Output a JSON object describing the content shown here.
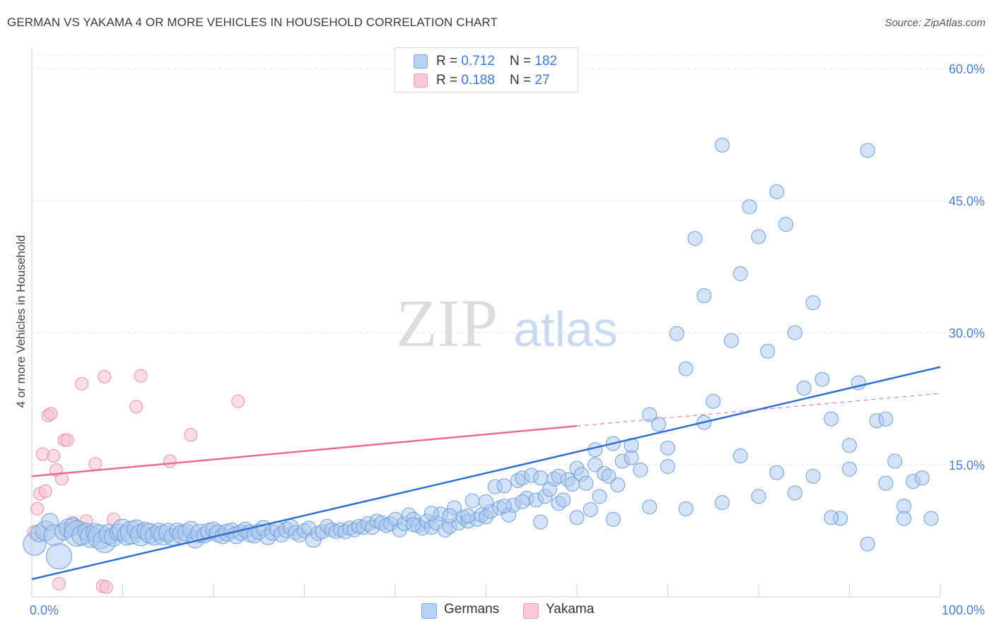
{
  "title": "GERMAN VS YAKAMA 4 OR MORE VEHICLES IN HOUSEHOLD CORRELATION CHART",
  "source": "Source: ZipAtlas.com",
  "watermark": {
    "zip": "ZIP",
    "atlas": "atlas"
  },
  "colors": {
    "german_fill": "#a9c8f0",
    "german_stroke": "#6e9fdc",
    "german_line": "#2f6fd0",
    "yakama_fill": "#f7bdd0",
    "yakama_stroke": "#e890ae",
    "yakama_line": "#e8689a",
    "tick_text": "#4a7fcb",
    "grid": "#e2e2e2"
  },
  "legend": {
    "rows": [
      {
        "r_label": "R = ",
        "r_value": "0.712",
        "n_label": "N = ",
        "n_value": "182"
      },
      {
        "r_label": "R = ",
        "r_value": "0.188",
        "n_label": "N = ",
        "n_value": "27"
      }
    ]
  },
  "bottom_legend": {
    "germans": "Germans",
    "yakama": "Yakama"
  },
  "chart_data": {
    "type": "scatter",
    "title": "GERMAN VS YAKAMA 4 OR MORE VEHICLES IN HOUSEHOLD CORRELATION CHART",
    "xlabel": "",
    "ylabel": "4 or more Vehicles in Household",
    "xlim": [
      0,
      100
    ],
    "ylim": [
      0,
      63
    ],
    "x_tick_labels": [
      "0.0%",
      "100.0%"
    ],
    "y_ticks": [
      15,
      30,
      45,
      60
    ],
    "y_tick_labels": [
      "15.0%",
      "30.0%",
      "45.0%",
      "60.0%"
    ],
    "grid": true,
    "legend_placement": "top-center",
    "series": [
      {
        "name": "Germans",
        "R": 0.712,
        "N": 182,
        "trend": {
          "x0": 0,
          "y0": 2.0,
          "x1": 100,
          "y1": 26.1
        },
        "points": [
          [
            0.3,
            6.0,
            16
          ],
          [
            0.8,
            7.2,
            12
          ],
          [
            1.5,
            7.5,
            14
          ],
          [
            2.0,
            8.5,
            12
          ],
          [
            2.5,
            7.0,
            15
          ],
          [
            3.0,
            4.6,
            18
          ],
          [
            3.5,
            7.4,
            12
          ],
          [
            4.0,
            7.8,
            13
          ],
          [
            4.5,
            8.0,
            12
          ],
          [
            5.0,
            7.2,
            18
          ],
          [
            5.5,
            7.0,
            14
          ],
          [
            6.0,
            7.4,
            12
          ],
          [
            6.5,
            6.8,
            15
          ],
          [
            7.0,
            7.3,
            13
          ],
          [
            7.5,
            6.8,
            17
          ],
          [
            8.0,
            6.3,
            16
          ],
          [
            8.5,
            7.1,
            14
          ],
          [
            9.0,
            6.8,
            13
          ],
          [
            9.5,
            7.3,
            12
          ],
          [
            10.0,
            7.6,
            15
          ],
          [
            10.5,
            7.0,
            14
          ],
          [
            11.0,
            7.3,
            16
          ],
          [
            11.5,
            7.7,
            13
          ],
          [
            12.0,
            7.0,
            15
          ],
          [
            12.5,
            7.5,
            12
          ],
          [
            13.0,
            7.2,
            14
          ],
          [
            13.5,
            6.9,
            13
          ],
          [
            14.0,
            7.4,
            12
          ],
          [
            14.5,
            7.0,
            14
          ],
          [
            15.0,
            7.3,
            13
          ],
          [
            15.5,
            6.8,
            12
          ],
          [
            16.0,
            7.5,
            11
          ],
          [
            16.5,
            7.1,
            13
          ],
          [
            17.0,
            7.3,
            12
          ],
          [
            17.5,
            7.6,
            12
          ],
          [
            18.0,
            6.5,
            12
          ],
          [
            18.5,
            7.2,
            13
          ],
          [
            19.0,
            7.0,
            11
          ],
          [
            19.5,
            7.4,
            12
          ],
          [
            20.0,
            7.6,
            11
          ],
          [
            20.5,
            7.2,
            12
          ],
          [
            21.0,
            6.9,
            11
          ],
          [
            21.5,
            7.3,
            12
          ],
          [
            22.0,
            7.5,
            11
          ],
          [
            22.5,
            7.0,
            12
          ],
          [
            23.0,
            7.3,
            11
          ],
          [
            23.5,
            7.6,
            11
          ],
          [
            24.0,
            7.2,
            12
          ],
          [
            24.5,
            7.0,
            11
          ],
          [
            25.0,
            7.4,
            11
          ],
          [
            25.5,
            7.8,
            11
          ],
          [
            26.0,
            6.8,
            11
          ],
          [
            26.5,
            7.3,
            11
          ],
          [
            27.0,
            7.7,
            11
          ],
          [
            27.5,
            7.1,
            11
          ],
          [
            28.0,
            7.6,
            11
          ],
          [
            28.5,
            7.9,
            11
          ],
          [
            29.0,
            7.3,
            10
          ],
          [
            29.5,
            7.0,
            10
          ],
          [
            30.0,
            7.5,
            10
          ],
          [
            30.5,
            7.8,
            10
          ],
          [
            31.0,
            6.5,
            11
          ],
          [
            31.5,
            7.2,
            10
          ],
          [
            32.0,
            7.4,
            10
          ],
          [
            32.5,
            8.0,
            10
          ],
          [
            33.0,
            7.6,
            10
          ],
          [
            33.5,
            7.4,
            10
          ],
          [
            34.0,
            7.6,
            10
          ],
          [
            34.5,
            7.4,
            10
          ],
          [
            35.0,
            7.8,
            10
          ],
          [
            35.5,
            7.6,
            10
          ],
          [
            36.0,
            8.0,
            10
          ],
          [
            36.5,
            7.9,
            10
          ],
          [
            37.0,
            8.3,
            10
          ],
          [
            37.5,
            7.9,
            10
          ],
          [
            38.0,
            8.6,
            10
          ],
          [
            38.5,
            8.4,
            10
          ],
          [
            39.0,
            8.1,
            10
          ],
          [
            39.5,
            8.3,
            10
          ],
          [
            40.0,
            8.8,
            10
          ],
          [
            40.5,
            7.6,
            10
          ],
          [
            41.0,
            8.3,
            10
          ],
          [
            41.5,
            9.3,
            10
          ],
          [
            42.0,
            8.8,
            10
          ],
          [
            42.5,
            8.1,
            10
          ],
          [
            43.0,
            7.8,
            10
          ],
          [
            43.5,
            8.6,
            10
          ],
          [
            44.0,
            7.9,
            10
          ],
          [
            44.5,
            8.4,
            10
          ],
          [
            45.0,
            9.4,
            10
          ],
          [
            45.5,
            7.6,
            10
          ],
          [
            46.0,
            8.0,
            10
          ],
          [
            46.5,
            10.1,
            10
          ],
          [
            47.0,
            8.4,
            10
          ],
          [
            47.5,
            9.0,
            10
          ],
          [
            48.0,
            8.6,
            10
          ],
          [
            48.5,
            10.9,
            10
          ],
          [
            49.0,
            8.8,
            10
          ],
          [
            49.5,
            9.3,
            10
          ],
          [
            50.0,
            9.1,
            10
          ],
          [
            50.5,
            9.7,
            10
          ],
          [
            51.0,
            12.5,
            10
          ],
          [
            51.5,
            10.1,
            10
          ],
          [
            52.0,
            12.6,
            10
          ],
          [
            52.5,
            9.3,
            10
          ],
          [
            53.0,
            10.4,
            10
          ],
          [
            53.5,
            13.2,
            10
          ],
          [
            54.0,
            13.5,
            10
          ],
          [
            54.5,
            11.2,
            10
          ],
          [
            55.0,
            13.8,
            10
          ],
          [
            55.5,
            11.0,
            10
          ],
          [
            56.0,
            13.5,
            10
          ],
          [
            56.5,
            11.4,
            10
          ],
          [
            57.0,
            12.2,
            10
          ],
          [
            57.5,
            13.4,
            10
          ],
          [
            58.0,
            10.6,
            10
          ],
          [
            58.5,
            11.0,
            10
          ],
          [
            59.0,
            13.3,
            10
          ],
          [
            59.5,
            12.8,
            10
          ],
          [
            60.0,
            14.6,
            10
          ],
          [
            60.5,
            13.9,
            10
          ],
          [
            61.0,
            12.9,
            10
          ],
          [
            61.5,
            9.9,
            10
          ],
          [
            62.0,
            15.0,
            10
          ],
          [
            62.5,
            11.4,
            10
          ],
          [
            63.0,
            14.0,
            10
          ],
          [
            63.5,
            13.7,
            10
          ],
          [
            64.0,
            17.4,
            10
          ],
          [
            64.5,
            12.7,
            10
          ],
          [
            65.0,
            15.4,
            10
          ],
          [
            66.0,
            15.8,
            10
          ],
          [
            67.0,
            14.4,
            10
          ],
          [
            68.0,
            20.7,
            10
          ],
          [
            69.0,
            19.6,
            10
          ],
          [
            70.0,
            14.8,
            10
          ],
          [
            71.0,
            29.9,
            10
          ],
          [
            72.0,
            25.9,
            10
          ],
          [
            73.0,
            40.7,
            10
          ],
          [
            74.0,
            34.2,
            10
          ],
          [
            75.0,
            22.2,
            10
          ],
          [
            76.0,
            51.3,
            10
          ],
          [
            77.0,
            29.1,
            10
          ],
          [
            78.0,
            36.7,
            10
          ],
          [
            79.0,
            44.3,
            10
          ],
          [
            80.0,
            40.9,
            10
          ],
          [
            81.0,
            27.9,
            10
          ],
          [
            82.0,
            46.0,
            10
          ],
          [
            83.0,
            42.3,
            10
          ],
          [
            84.0,
            30.0,
            10
          ],
          [
            85.0,
            23.7,
            10
          ],
          [
            86.0,
            33.4,
            10
          ],
          [
            87.0,
            24.7,
            10
          ],
          [
            88.0,
            20.2,
            10
          ],
          [
            89.0,
            8.9,
            10
          ],
          [
            90.0,
            17.2,
            10
          ],
          [
            91.0,
            24.3,
            10
          ],
          [
            92.0,
            50.7,
            10
          ],
          [
            93.0,
            20.0,
            10
          ],
          [
            94.0,
            12.9,
            10
          ],
          [
            95.0,
            15.4,
            10
          ],
          [
            96.0,
            10.3,
            10
          ],
          [
            97.0,
            13.1,
            10
          ],
          [
            98.0,
            13.5,
            10
          ],
          [
            99.0,
            8.9,
            10
          ],
          [
            42.0,
            8.2,
            10
          ],
          [
            44.0,
            9.5,
            10
          ],
          [
            46.0,
            9.2,
            10
          ],
          [
            52.0,
            10.3,
            10
          ],
          [
            56.0,
            8.5,
            10
          ],
          [
            60.0,
            9.0,
            10
          ],
          [
            64.0,
            8.8,
            10
          ],
          [
            68.0,
            10.2,
            10
          ],
          [
            72.0,
            10.0,
            10
          ],
          [
            76.0,
            10.7,
            10
          ],
          [
            80.0,
            11.4,
            10
          ],
          [
            84.0,
            11.8,
            10
          ],
          [
            88.0,
            9.0,
            10
          ],
          [
            92.0,
            6.0,
            10
          ],
          [
            96.0,
            8.9,
            10
          ],
          [
            70.0,
            16.9,
            10
          ],
          [
            74.0,
            19.8,
            10
          ],
          [
            78.0,
            16.0,
            10
          ],
          [
            82.0,
            14.1,
            10
          ],
          [
            86.0,
            13.7,
            10
          ],
          [
            90.0,
            14.5,
            10
          ],
          [
            94.0,
            20.2,
            10
          ],
          [
            66.0,
            17.2,
            10
          ],
          [
            62.0,
            16.7,
            10
          ],
          [
            58.0,
            13.7,
            10
          ],
          [
            54.0,
            10.8,
            10
          ],
          [
            50.0,
            10.8,
            10
          ],
          [
            48.0,
            9.2,
            10
          ]
        ]
      },
      {
        "name": "Yakama",
        "R": 0.188,
        "N": 27,
        "trend": {
          "x0": 0,
          "y0": 13.7,
          "x1": 60,
          "y1": 19.4,
          "dash_x1": 100,
          "dash_y1": 23.1
        },
        "points": [
          [
            0.3,
            7.3,
            10
          ],
          [
            0.6,
            10.0,
            9
          ],
          [
            0.9,
            11.7,
            9
          ],
          [
            1.2,
            16.2,
            9
          ],
          [
            1.5,
            12.0,
            9
          ],
          [
            1.8,
            20.6,
            9
          ],
          [
            2.1,
            20.8,
            9
          ],
          [
            2.4,
            16.0,
            9
          ],
          [
            2.7,
            14.4,
            9
          ],
          [
            3.0,
            1.5,
            9
          ],
          [
            3.3,
            13.4,
            9
          ],
          [
            3.6,
            17.8,
            9
          ],
          [
            3.9,
            17.8,
            9
          ],
          [
            4.5,
            8.4,
            9
          ],
          [
            5.0,
            8.0,
            9
          ],
          [
            5.5,
            24.2,
            9
          ],
          [
            6.0,
            8.6,
            9
          ],
          [
            7.0,
            15.1,
            9
          ],
          [
            7.8,
            1.2,
            9
          ],
          [
            8.2,
            1.1,
            9
          ],
          [
            8.0,
            25.0,
            9
          ],
          [
            9.0,
            8.8,
            9
          ],
          [
            11.5,
            21.6,
            9
          ],
          [
            12.0,
            25.1,
            9
          ],
          [
            15.2,
            15.4,
            9
          ],
          [
            17.5,
            18.4,
            9
          ],
          [
            22.7,
            22.2,
            9
          ]
        ]
      }
    ]
  }
}
